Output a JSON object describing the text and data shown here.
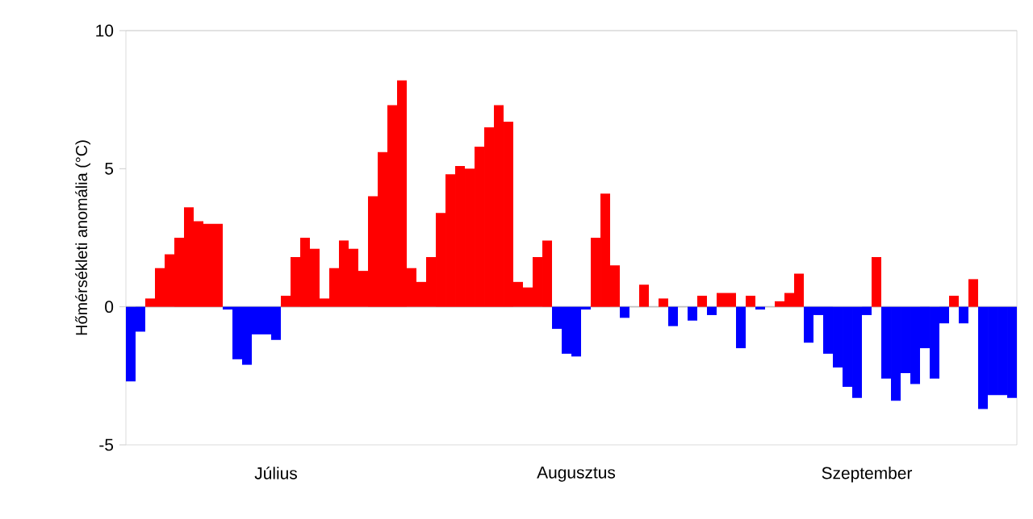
{
  "chart_data": {
    "type": "bar",
    "ylabel": "Hőmérsékleti anomália (°C)",
    "categories": [
      null,
      null,
      null,
      null,
      null,
      null,
      null,
      null,
      null,
      null,
      null,
      null,
      null,
      null,
      null,
      "Július",
      null,
      null,
      null,
      null,
      null,
      null,
      null,
      null,
      null,
      null,
      null,
      null,
      null,
      null,
      null,
      null,
      null,
      null,
      null,
      null,
      null,
      null,
      null,
      null,
      null,
      null,
      null,
      null,
      null,
      null,
      "Augusztus",
      null,
      null,
      null,
      null,
      null,
      null,
      null,
      null,
      null,
      null,
      null,
      null,
      null,
      null,
      null,
      null,
      null,
      null,
      null,
      null,
      null,
      null,
      null,
      null,
      null,
      null,
      null,
      null,
      null,
      "Szeptember",
      null,
      null,
      null,
      null,
      null,
      null,
      null,
      null,
      null,
      null,
      null,
      null,
      null,
      null,
      null
    ],
    "values": [
      -2.7,
      -0.9,
      0.3,
      1.4,
      1.9,
      2.5,
      3.6,
      3.1,
      3.0,
      3.0,
      -0.1,
      -1.9,
      -2.1,
      -1.0,
      -1.0,
      -1.2,
      0.4,
      1.8,
      2.5,
      2.1,
      0.3,
      1.4,
      2.4,
      2.1,
      1.3,
      4.0,
      5.6,
      7.3,
      8.2,
      1.4,
      0.9,
      1.8,
      3.4,
      4.8,
      5.1,
      5.0,
      5.8,
      6.5,
      7.3,
      6.7,
      0.9,
      0.7,
      1.8,
      2.4,
      -0.8,
      -1.7,
      -1.8,
      -0.1,
      2.5,
      4.1,
      1.5,
      -0.4,
      0,
      0.8,
      0,
      0.3,
      -0.7,
      0,
      -0.5,
      0.4,
      -0.3,
      0.5,
      0.5,
      -1.5,
      0.4,
      -0.1,
      0,
      0.2,
      0.5,
      1.2,
      -1.3,
      -0.3,
      -1.7,
      -2.2,
      -2.9,
      -3.3,
      -0.3,
      1.8,
      -2.6,
      -3.4,
      -2.4,
      -2.8,
      -1.5,
      -2.6,
      -0.6,
      0.4,
      -0.6,
      1.0,
      -3.7,
      -3.2,
      -3.2,
      -3.3
    ],
    "colors": [
      "#0000ff",
      "#0000ff",
      "#ff0000",
      "#ff0000",
      "#ff0000",
      "#ff0000",
      "#ff0000",
      "#ff0000",
      "#ff0000",
      "#ff0000",
      "#0000ff",
      "#0000ff",
      "#0000ff",
      "#0000ff",
      "#0000ff",
      "#0000ff",
      "#ff0000",
      "#ff0000",
      "#ff0000",
      "#ff0000",
      "#ff0000",
      "#ff0000",
      "#ff0000",
      "#ff0000",
      "#ff0000",
      "#ff0000",
      "#ff0000",
      "#ff0000",
      "#ff0000",
      "#ff0000",
      "#ff0000",
      "#ff0000",
      "#ff0000",
      "#ff0000",
      "#ff0000",
      "#ff0000",
      "#ff0000",
      "#ff0000",
      "#ff0000",
      "#ff0000",
      "#ff0000",
      "#ff0000",
      "#ff0000",
      "#ff0000",
      "#0000ff",
      "#0000ff",
      "#0000ff",
      "#0000ff",
      "#ff0000",
      "#ff0000",
      "#ff0000",
      "#0000ff",
      "#ff0000",
      "#ff0000",
      "#ff0000",
      "#ff0000",
      "#0000ff",
      "#ff0000",
      "#0000ff",
      "#ff0000",
      "#0000ff",
      "#ff0000",
      "#ff0000",
      "#0000ff",
      "#ff0000",
      "#0000ff",
      "#ff0000",
      "#ff0000",
      "#ff0000",
      "#ff0000",
      "#0000ff",
      "#0000ff",
      "#0000ff",
      "#0000ff",
      "#0000ff",
      "#0000ff",
      "#0000ff",
      "#ff0000",
      "#0000ff",
      "#0000ff",
      "#0000ff",
      "#0000ff",
      "#0000ff",
      "#0000ff",
      "#0000ff",
      "#ff0000",
      "#0000ff",
      "#ff0000",
      "#0000ff",
      "#0000ff",
      "#0000ff",
      "#0000ff"
    ],
    "ylim": [
      -5,
      10
    ],
    "yticks": [
      -5,
      0,
      5,
      10
    ],
    "ref_lines": [
      {
        "axis": "y",
        "value": 0,
        "color": "#c0c0c0"
      }
    ]
  }
}
